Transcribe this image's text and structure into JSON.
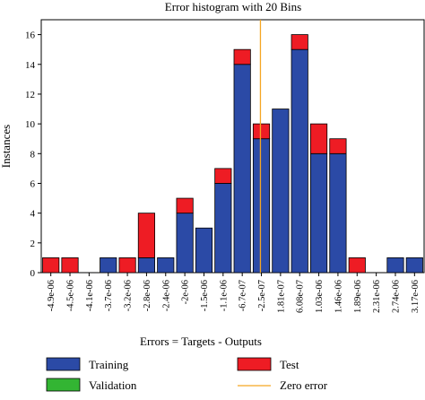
{
  "chart_data": {
    "type": "bar",
    "stacked": true,
    "title": "Error histogram with 20 Bins",
    "xlabel": "Errors = Targets - Outputs",
    "ylabel": "Instances",
    "ylim": [
      0,
      17
    ],
    "yticks": [
      0,
      2,
      4,
      6,
      8,
      10,
      12,
      14,
      16
    ],
    "grid": false,
    "categories": [
      "-4.9e-06",
      "-4.5e-06",
      "-4.1e-06",
      "-3.7e-06",
      "-3.2e-06",
      "-2.8e-06",
      "-2.4e-06",
      "-2e-06",
      "-1.5e-06",
      "-1.1e-06",
      "-6.7e-07",
      "-2.5e-07",
      "1.81e-07",
      "6.08e-07",
      "1.03e-06",
      "1.46e-06",
      "1.89e-06",
      "2.31e-06",
      "2.74e-06",
      "3.17e-06"
    ],
    "series": [
      {
        "name": "Training",
        "color": "#2b4aa6",
        "values": [
          0,
          0,
          0,
          1,
          0,
          1,
          1,
          4,
          3,
          6,
          14,
          9,
          11,
          15,
          8,
          8,
          0,
          0,
          1,
          1
        ]
      },
      {
        "name": "Validation",
        "color": "#33b533",
        "values": [
          0,
          0,
          0,
          0,
          0,
          0,
          0,
          0,
          0,
          0,
          0,
          0,
          0,
          0,
          0,
          0,
          0,
          0,
          0,
          0
        ]
      },
      {
        "name": "Test",
        "color": "#ee1c24",
        "values": [
          1,
          1,
          0,
          0,
          1,
          3,
          0,
          1,
          0,
          1,
          1,
          1,
          0,
          1,
          2,
          1,
          1,
          0,
          0,
          0
        ]
      }
    ],
    "zero_error": {
      "label": "Zero error",
      "x_position_bins": 11.45,
      "color": "#f5a623"
    },
    "legend": {
      "placement": "bottom",
      "entries": [
        {
          "label": "Training",
          "color": "#2b4aa6"
        },
        {
          "label": "Test",
          "color": "#ee1c24"
        },
        {
          "label": "Validation",
          "color": "#33b533"
        },
        {
          "label": "Zero error",
          "color": "#f5a623"
        }
      ]
    }
  }
}
